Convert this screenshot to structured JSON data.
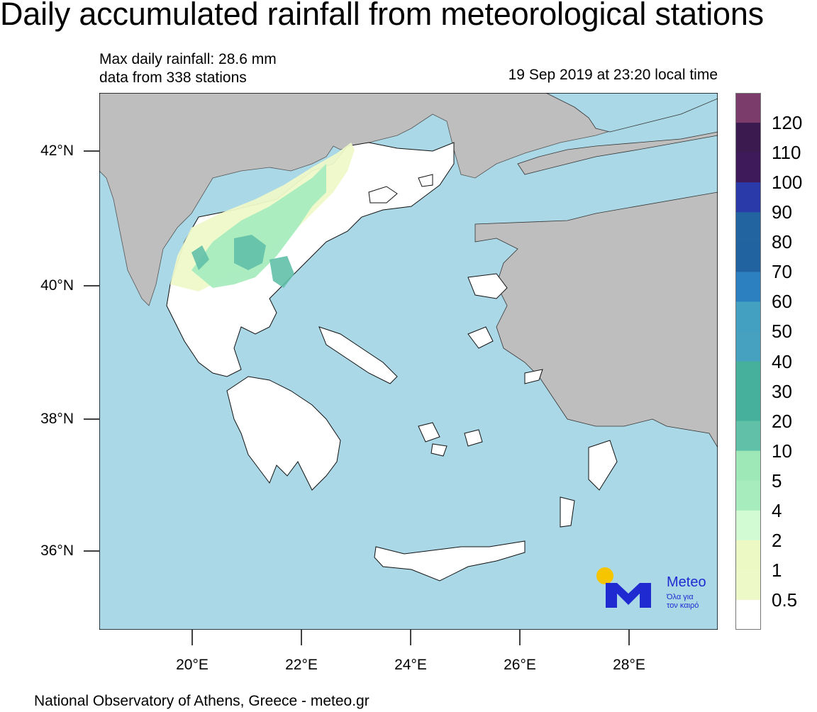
{
  "title": "Daily accumulated rainfall from meteorological stations",
  "info": {
    "max_rainfall": "Max daily rainfall: 28.6 mm",
    "stations": "data from 338 stations",
    "timestamp": "19 Sep 2019 at 23:20 local time"
  },
  "lat_labels": [
    "42°N",
    "40°N",
    "38°N",
    "36°N"
  ],
  "lon_labels": [
    "20°E",
    "22°E",
    "24°E",
    "26°E",
    "28°E"
  ],
  "colorbar": {
    "labels": [
      "120",
      "110",
      "100",
      "90",
      "80",
      "70",
      "60",
      "50",
      "40",
      "30",
      "20",
      "10",
      "5",
      "4",
      "2",
      "1",
      "0.5"
    ],
    "colors": [
      "#7b3b6b",
      "#3b1a4f",
      "#3e1a5a",
      "#2a3aa8",
      "#2264a0",
      "#2162a0",
      "#2c80c0",
      "#43a0c0",
      "#46a0c0",
      "#46b09c",
      "#46b09c",
      "#60c0a8",
      "#9ee8b8",
      "#a6ecbd",
      "#d3fbd3",
      "#ecf9c4",
      "#eef9c8",
      "#ffffff"
    ]
  },
  "map": {
    "sea_color": "#aad8e6",
    "land_color": "#bebebe",
    "greece_color": "#ffffff"
  },
  "logo": {
    "brand": "Meteo",
    "slogan_line1": "Όλα για",
    "slogan_line2": "τον καιρό"
  },
  "footer": "National Observatory of Athens, Greece - meteo.gr"
}
